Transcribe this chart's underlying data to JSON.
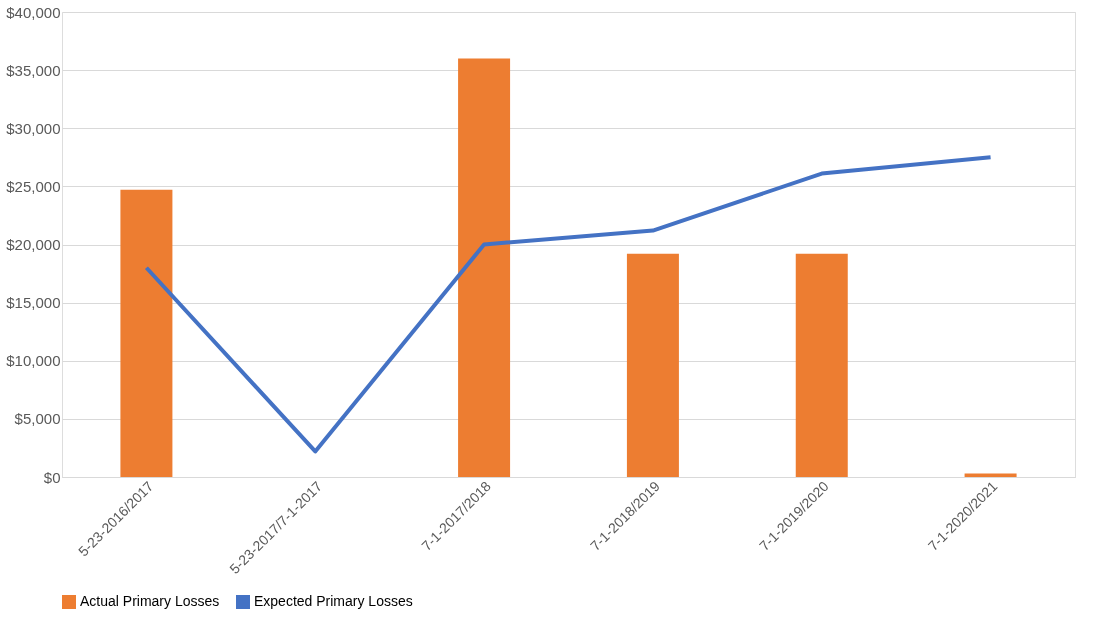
{
  "chart_data": {
    "type": "bar",
    "categories": [
      "5-23-2016/2017",
      "5-23-2017/7-1-2017",
      "7-1-2017/2018",
      "7-1-2018/2019",
      "7-1-2019/2020",
      "7-1-2020/2021"
    ],
    "series": [
      {
        "name": "Actual Primary Losses",
        "color": "#ed7d31",
        "values": [
          24700,
          null,
          36000,
          19200,
          19200,
          300
        ]
      },
      {
        "name": "Expected Primary Losses",
        "type": "line",
        "color": "#4472c4",
        "values": [
          18000,
          2200,
          20000,
          21200,
          26100,
          27500
        ]
      }
    ],
    "ylim": [
      0,
      40000
    ],
    "yticks": [
      {
        "value": 0,
        "label": "$0"
      },
      {
        "value": 5000,
        "label": "$5,000"
      },
      {
        "value": 10000,
        "label": "$10,000"
      },
      {
        "value": 15000,
        "label": "$15,000"
      },
      {
        "value": 20000,
        "label": "$20,000"
      },
      {
        "value": 25000,
        "label": "$25,000"
      },
      {
        "value": 30000,
        "label": "$30,000"
      },
      {
        "value": 35000,
        "label": "$35,000"
      },
      {
        "value": 40000,
        "label": "$40,000"
      }
    ],
    "grid": "y",
    "legend": "bottom",
    "marker": "none",
    "line_style": "solid"
  }
}
